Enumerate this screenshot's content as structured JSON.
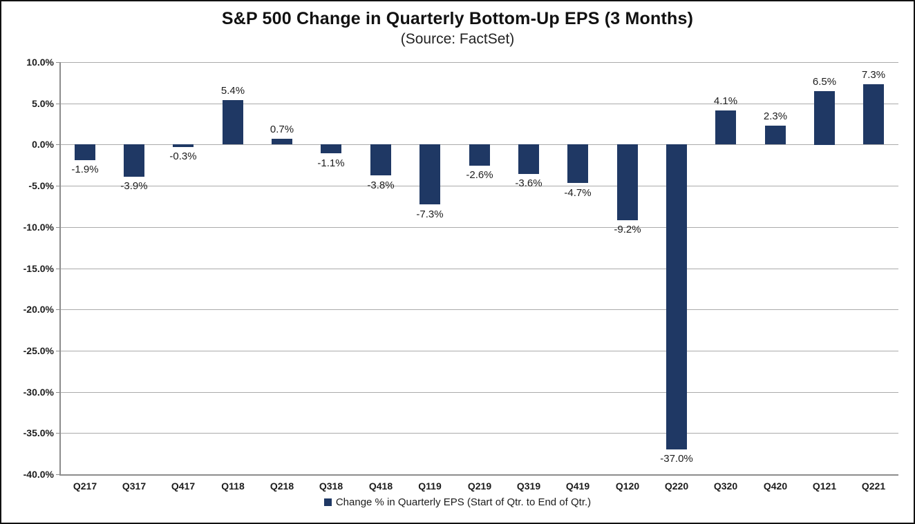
{
  "header": {
    "title": "S&P 500 Change in Quarterly Bottom-Up EPS (3 Months)",
    "subtitle": "(Source: FactSet)"
  },
  "legend": {
    "label": "Change % in Quarterly EPS (Start of Qtr. to End of Qtr.)"
  },
  "colors": {
    "bar": "#1F3864",
    "grid": "#AAAAAA",
    "axis": "#8C8C8C",
    "text": "#1C1C1C",
    "border": "#111111"
  },
  "chart_data": {
    "type": "bar",
    "title": "S&P 500 Change in Quarterly Bottom-Up EPS (3 Months)",
    "subtitle": "(Source: FactSet)",
    "categories": [
      "Q217",
      "Q317",
      "Q417",
      "Q118",
      "Q218",
      "Q318",
      "Q418",
      "Q119",
      "Q219",
      "Q319",
      "Q419",
      "Q120",
      "Q220",
      "Q320",
      "Q420",
      "Q121",
      "Q221"
    ],
    "values": [
      -1.9,
      -3.9,
      -0.3,
      5.4,
      0.7,
      -1.1,
      -3.8,
      -7.3,
      -2.6,
      -3.6,
      -4.7,
      -9.2,
      -37.0,
      4.1,
      2.3,
      6.5,
      7.3
    ],
    "data_labels": [
      "-1.9%",
      "-3.9%",
      "-0.3%",
      "5.4%",
      "0.7%",
      "-1.1%",
      "-3.8%",
      "-7.3%",
      "-2.6%",
      "-3.6%",
      "-4.7%",
      "-9.2%",
      "-37.0%",
      "4.1%",
      "2.3%",
      "6.5%",
      "7.3%"
    ],
    "series_name": "Change % in Quarterly EPS (Start of Qtr. to End of Qtr.)",
    "xlabel": "",
    "ylabel": "",
    "ylim": [
      -40,
      10
    ],
    "ytick_values": [
      10,
      5,
      0,
      -5,
      -10,
      -15,
      -20,
      -25,
      -30,
      -35,
      -40
    ],
    "ytick_labels": [
      "10.0%",
      "5.0%",
      "0.0%",
      "-5.0%",
      "-10.0%",
      "-15.0%",
      "-20.0%",
      "-25.0%",
      "-30.0%",
      "-35.0%",
      "-40.0%"
    ],
    "grid": "horizontal-only",
    "legend_position": "bottom"
  }
}
